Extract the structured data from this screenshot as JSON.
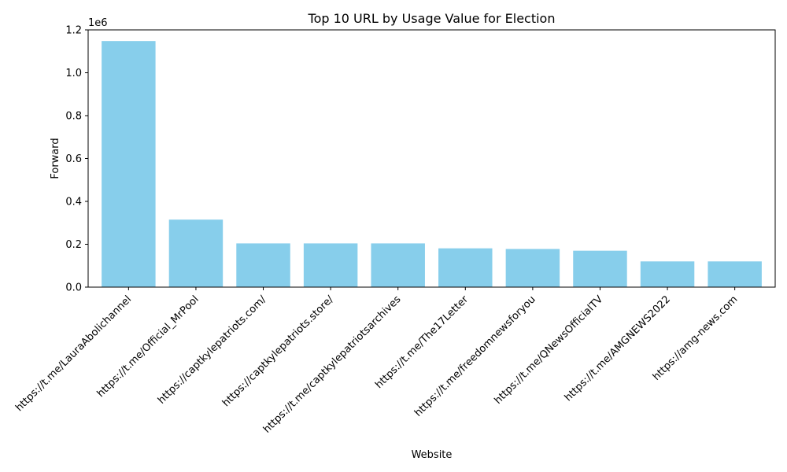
{
  "chart_data": {
    "type": "bar",
    "title": "Top 10 URL by Usage Value for Election",
    "xlabel": "Website",
    "ylabel": "Forward",
    "y_offset_label": "1e6",
    "ylim": [
      0,
      1200000
    ],
    "yticks": [
      0,
      200000,
      400000,
      600000,
      800000,
      1000000,
      1200000
    ],
    "ytick_labels": [
      "0.0",
      "0.2",
      "0.4",
      "0.6",
      "0.8",
      "1.0",
      "1.2"
    ],
    "bar_color": "#87CEEB",
    "grid": false,
    "categories": [
      "https://t.me/LauraAbolichannel",
      "https://t.me/Official_MrPool",
      "https://captkylepatriots.com/",
      "https://captkylepatriots.store/",
      "https://t.me/captkylepatriotsarchives",
      "https://t.me/The17Letter",
      "https://t.me/freedomnewsforyou",
      "https://t.me/QNewsOfficialTV",
      "https://t.me/AMGNEWS2022",
      "https://amg-news.com"
    ],
    "values": [
      1148000,
      315000,
      204000,
      204000,
      204000,
      181000,
      178000,
      170000,
      120000,
      120000
    ]
  }
}
